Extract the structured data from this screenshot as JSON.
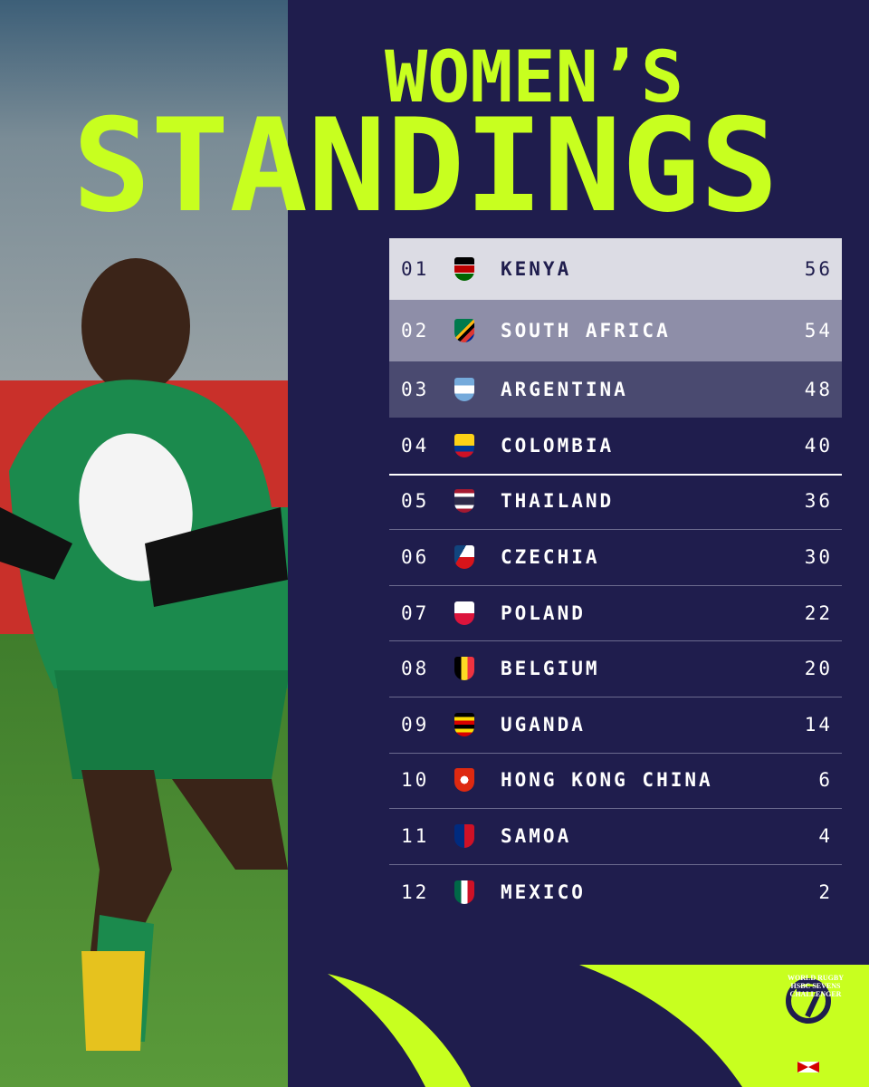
{
  "header": {
    "line1": "WOMEN’S",
    "line2": "STANDINGS"
  },
  "table": {
    "rows": [
      [
        "01",
        "KENYA",
        56
      ],
      [
        "02",
        "SOUTH AFRICA",
        54
      ],
      [
        "03",
        "ARGENTINA",
        48
      ],
      [
        "04",
        "COLOMBIA",
        40
      ],
      [
        "05",
        "THAILAND",
        36
      ],
      [
        "06",
        "CZECHIA",
        30
      ],
      [
        "07",
        "POLAND",
        22
      ],
      [
        "08",
        "BELGIUM",
        20
      ],
      [
        "09",
        "UGANDA",
        14
      ],
      [
        "10",
        "HONG KONG CHINA",
        6
      ],
      [
        "11",
        "SAMOA",
        4
      ],
      [
        "12",
        "MEXICO",
        2
      ]
    ]
  },
  "logo": {
    "line1": "WORLD RUGBY",
    "line2": "HSBC SEVENS",
    "line3": "CHALLENGER"
  }
}
